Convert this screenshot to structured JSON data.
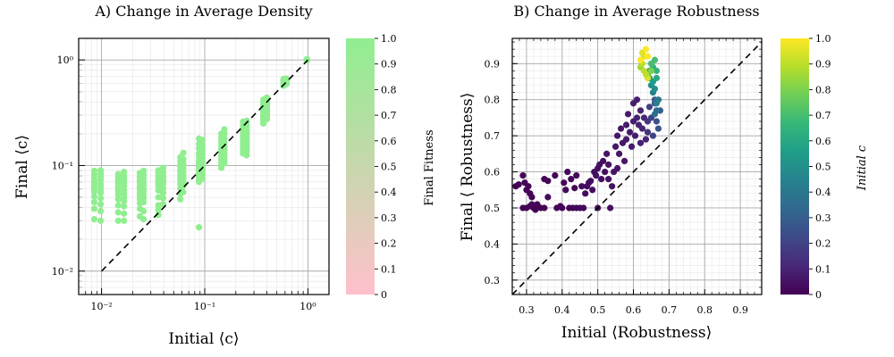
{
  "chart_data": [
    {
      "type": "scatter",
      "title": "A) Change in Average Density",
      "xlabel": "Initial ⟨c⟩",
      "ylabel": "Final ⟨c⟩",
      "xscale": "log",
      "yscale": "log",
      "xlim": [
        0.006,
        1.6
      ],
      "ylim": [
        0.006,
        1.6
      ],
      "grid": true,
      "xticks": [
        {
          "value": 0.01,
          "label": "10⁻²"
        },
        {
          "value": 0.1,
          "label": "10⁻¹"
        },
        {
          "value": 1,
          "label": "10⁰"
        }
      ],
      "yticks": [
        {
          "value": 0.01,
          "label": "10⁻²"
        },
        {
          "value": 0.1,
          "label": "10⁻¹"
        },
        {
          "value": 1,
          "label": "10⁰"
        }
      ],
      "reference_line": {
        "style": "dashed",
        "from": [
          0.01,
          0.01
        ],
        "to": [
          1,
          1
        ],
        "color": "#000000"
      },
      "marker_color": "#90ee90",
      "series": [
        {
          "x": 0.0085,
          "y": [
            0.089,
            0.082,
            0.076,
            0.071,
            0.068,
            0.065,
            0.061,
            0.057,
            0.051,
            0.045,
            0.039,
            0.031
          ]
        },
        {
          "x": 0.0098,
          "y": [
            0.09,
            0.084,
            0.078,
            0.073,
            0.067,
            0.063,
            0.059,
            0.055,
            0.049,
            0.043,
            0.037,
            0.03
          ]
        },
        {
          "x": 0.0145,
          "y": [
            0.083,
            0.077,
            0.072,
            0.068,
            0.063,
            0.06,
            0.057,
            0.053,
            0.048,
            0.042,
            0.036,
            0.03
          ]
        },
        {
          "x": 0.0165,
          "y": [
            0.087,
            0.08,
            0.074,
            0.069,
            0.064,
            0.058,
            0.054,
            0.05,
            0.046,
            0.041,
            0.035,
            0.03
          ]
        },
        {
          "x": 0.0235,
          "y": [
            0.085,
            0.079,
            0.073,
            0.069,
            0.064,
            0.061,
            0.056,
            0.052,
            0.048,
            0.044,
            0.039,
            0.033
          ]
        },
        {
          "x": 0.0255,
          "y": [
            0.089,
            0.082,
            0.076,
            0.07,
            0.065,
            0.06,
            0.057,
            0.053,
            0.049,
            0.045,
            0.037,
            0.031
          ]
        },
        {
          "x": 0.0355,
          "y": [
            0.09,
            0.085,
            0.079,
            0.073,
            0.069,
            0.064,
            0.058,
            0.05,
            0.042,
            0.038,
            0.034
          ]
        },
        {
          "x": 0.0395,
          "y": [
            0.095,
            0.086,
            0.08,
            0.076,
            0.071,
            0.067,
            0.061,
            0.055,
            0.049,
            0.043
          ]
        },
        {
          "x": 0.058,
          "y": [
            0.12,
            0.11,
            0.1,
            0.095,
            0.089,
            0.083,
            0.078,
            0.073,
            0.067,
            0.061,
            0.054,
            0.048
          ]
        },
        {
          "x": 0.062,
          "y": [
            0.132,
            0.115,
            0.105,
            0.094,
            0.087,
            0.08,
            0.075,
            0.069,
            0.064,
            0.056
          ]
        },
        {
          "x": 0.088,
          "y": [
            0.18,
            0.16,
            0.145,
            0.13,
            0.12,
            0.11,
            0.104,
            0.097,
            0.091,
            0.085,
            0.079,
            0.074,
            0.07,
            0.026
          ]
        },
        {
          "x": 0.095,
          "y": [
            0.175,
            0.155,
            0.14,
            0.128,
            0.118,
            0.108,
            0.1,
            0.093,
            0.087,
            0.081,
            0.075
          ]
        },
        {
          "x": 0.145,
          "y": [
            0.2,
            0.185,
            0.172,
            0.16,
            0.15,
            0.142,
            0.134,
            0.126,
            0.119,
            0.112,
            0.106,
            0.1,
            0.095
          ]
        },
        {
          "x": 0.155,
          "y": [
            0.22,
            0.2,
            0.18,
            0.165,
            0.152,
            0.14,
            0.13,
            0.12,
            0.112,
            0.105
          ]
        },
        {
          "x": 0.235,
          "y": [
            0.26,
            0.24,
            0.225,
            0.21,
            0.198,
            0.185,
            0.172,
            0.16,
            0.15,
            0.14,
            0.13
          ]
        },
        {
          "x": 0.255,
          "y": [
            0.265,
            0.245,
            0.228,
            0.212,
            0.2,
            0.188,
            0.176,
            0.166,
            0.155,
            0.145,
            0.135,
            0.125
          ]
        },
        {
          "x": 0.37,
          "y": [
            0.42,
            0.4,
            0.38,
            0.36,
            0.345,
            0.33,
            0.315,
            0.3,
            0.29,
            0.28,
            0.27,
            0.26,
            0.25
          ]
        },
        {
          "x": 0.4,
          "y": [
            0.44,
            0.41,
            0.39,
            0.37,
            0.35,
            0.335,
            0.32,
            0.305,
            0.29,
            0.275
          ]
        },
        {
          "x": 0.58,
          "y": [
            0.66,
            0.64,
            0.62,
            0.6,
            0.585,
            0.57
          ]
        },
        {
          "x": 0.62,
          "y": [
            0.665,
            0.645,
            0.625,
            0.605,
            0.59
          ]
        },
        {
          "x": 0.98,
          "y": [
            1.0,
            1.02,
            0.99
          ]
        }
      ],
      "colorbar": {
        "label": "Final Fitness",
        "range": [
          0,
          1
        ],
        "colors": [
          "#ffc0cb",
          "#90ee90"
        ],
        "ticks": [
          "0",
          "0.1",
          "0.2",
          "0.3",
          "0.4",
          "0.5",
          "0.6",
          "0.7",
          "0.8",
          "0.9",
          "1.0"
        ]
      }
    },
    {
      "type": "scatter",
      "title": "B) Change in Average Robustness",
      "xlabel": "Initial ⟨Robustness⟩",
      "ylabel": "Final ⟨ Robustness⟩",
      "xlim": [
        0.26,
        0.96
      ],
      "ylim": [
        0.26,
        0.97
      ],
      "grid": true,
      "xticks": [
        "0.3",
        "0.4",
        "0.5",
        "0.6",
        "0.7",
        "0.8",
        "0.9"
      ],
      "yticks": [
        "0.3",
        "0.4",
        "0.5",
        "0.6",
        "0.7",
        "0.8",
        "0.9"
      ],
      "reference_line": {
        "style": "dashed",
        "from": [
          0.26,
          0.26
        ],
        "to": [
          0.96,
          0.96
        ],
        "color": "#000000"
      },
      "points": [
        {
          "x": 0.27,
          "y": 0.56,
          "c": 0.0
        },
        {
          "x": 0.278,
          "y": 0.565,
          "c": 0.0
        },
        {
          "x": 0.29,
          "y": 0.59,
          "c": 0.01
        },
        {
          "x": 0.295,
          "y": 0.57,
          "c": 0.01
        },
        {
          "x": 0.3,
          "y": 0.55,
          "c": 0.01
        },
        {
          "x": 0.305,
          "y": 0.56,
          "c": 0.01
        },
        {
          "x": 0.31,
          "y": 0.54,
          "c": 0.01
        },
        {
          "x": 0.315,
          "y": 0.53,
          "c": 0.01
        },
        {
          "x": 0.29,
          "y": 0.5,
          "c": 0.0
        },
        {
          "x": 0.3,
          "y": 0.5,
          "c": 0.0
        },
        {
          "x": 0.31,
          "y": 0.505,
          "c": 0.0
        },
        {
          "x": 0.32,
          "y": 0.5,
          "c": 0.0
        },
        {
          "x": 0.325,
          "y": 0.495,
          "c": 0.0
        },
        {
          "x": 0.33,
          "y": 0.505,
          "c": 0.0
        },
        {
          "x": 0.34,
          "y": 0.5,
          "c": 0.0
        },
        {
          "x": 0.35,
          "y": 0.5,
          "c": 0.0
        },
        {
          "x": 0.315,
          "y": 0.51,
          "c": 0.01
        },
        {
          "x": 0.33,
          "y": 0.51,
          "c": 0.01
        },
        {
          "x": 0.35,
          "y": 0.58,
          "c": 0.01
        },
        {
          "x": 0.36,
          "y": 0.575,
          "c": 0.01
        },
        {
          "x": 0.36,
          "y": 0.53,
          "c": 0.02
        },
        {
          "x": 0.38,
          "y": 0.59,
          "c": 0.01
        },
        {
          "x": 0.385,
          "y": 0.5,
          "c": 0.01
        },
        {
          "x": 0.395,
          "y": 0.505,
          "c": 0.01
        },
        {
          "x": 0.4,
          "y": 0.5,
          "c": 0.01
        },
        {
          "x": 0.405,
          "y": 0.57,
          "c": 0.02
        },
        {
          "x": 0.41,
          "y": 0.55,
          "c": 0.02
        },
        {
          "x": 0.415,
          "y": 0.6,
          "c": 0.02
        },
        {
          "x": 0.42,
          "y": 0.5,
          "c": 0.01
        },
        {
          "x": 0.425,
          "y": 0.58,
          "c": 0.02
        },
        {
          "x": 0.43,
          "y": 0.5,
          "c": 0.01
        },
        {
          "x": 0.435,
          "y": 0.555,
          "c": 0.02
        },
        {
          "x": 0.44,
          "y": 0.59,
          "c": 0.02
        },
        {
          "x": 0.44,
          "y": 0.5,
          "c": 0.02
        },
        {
          "x": 0.45,
          "y": 0.5,
          "c": 0.02
        },
        {
          "x": 0.455,
          "y": 0.56,
          "c": 0.03
        },
        {
          "x": 0.46,
          "y": 0.5,
          "c": 0.02
        },
        {
          "x": 0.465,
          "y": 0.54,
          "c": 0.03
        },
        {
          "x": 0.47,
          "y": 0.56,
          "c": 0.03
        },
        {
          "x": 0.475,
          "y": 0.57,
          "c": 0.03
        },
        {
          "x": 0.48,
          "y": 0.575,
          "c": 0.03
        },
        {
          "x": 0.485,
          "y": 0.55,
          "c": 0.03
        },
        {
          "x": 0.49,
          "y": 0.6,
          "c": 0.04
        },
        {
          "x": 0.495,
          "y": 0.59,
          "c": 0.04
        },
        {
          "x": 0.5,
          "y": 0.61,
          "c": 0.04
        },
        {
          "x": 0.5,
          "y": 0.5,
          "c": 0.03
        },
        {
          "x": 0.505,
          "y": 0.62,
          "c": 0.04
        },
        {
          "x": 0.51,
          "y": 0.58,
          "c": 0.04
        },
        {
          "x": 0.515,
          "y": 0.63,
          "c": 0.04
        },
        {
          "x": 0.52,
          "y": 0.6,
          "c": 0.04
        },
        {
          "x": 0.525,
          "y": 0.65,
          "c": 0.05
        },
        {
          "x": 0.53,
          "y": 0.62,
          "c": 0.05
        },
        {
          "x": 0.53,
          "y": 0.58,
          "c": 0.05
        },
        {
          "x": 0.535,
          "y": 0.5,
          "c": 0.04
        },
        {
          "x": 0.54,
          "y": 0.56,
          "c": 0.05
        },
        {
          "x": 0.545,
          "y": 0.6,
          "c": 0.05
        },
        {
          "x": 0.55,
          "y": 0.67,
          "c": 0.06
        },
        {
          "x": 0.555,
          "y": 0.7,
          "c": 0.06
        },
        {
          "x": 0.555,
          "y": 0.61,
          "c": 0.06
        },
        {
          "x": 0.56,
          "y": 0.65,
          "c": 0.06
        },
        {
          "x": 0.565,
          "y": 0.72,
          "c": 0.06
        },
        {
          "x": 0.57,
          "y": 0.68,
          "c": 0.06
        },
        {
          "x": 0.575,
          "y": 0.63,
          "c": 0.06
        },
        {
          "x": 0.58,
          "y": 0.73,
          "c": 0.07
        },
        {
          "x": 0.58,
          "y": 0.69,
          "c": 0.07
        },
        {
          "x": 0.585,
          "y": 0.76,
          "c": 0.07
        },
        {
          "x": 0.59,
          "y": 0.71,
          "c": 0.07
        },
        {
          "x": 0.595,
          "y": 0.67,
          "c": 0.07
        },
        {
          "x": 0.6,
          "y": 0.74,
          "c": 0.08
        },
        {
          "x": 0.6,
          "y": 0.79,
          "c": 0.08
        },
        {
          "x": 0.605,
          "y": 0.7,
          "c": 0.08
        },
        {
          "x": 0.61,
          "y": 0.75,
          "c": 0.09
        },
        {
          "x": 0.61,
          "y": 0.8,
          "c": 0.09
        },
        {
          "x": 0.615,
          "y": 0.73,
          "c": 0.09
        },
        {
          "x": 0.62,
          "y": 0.68,
          "c": 0.09
        },
        {
          "x": 0.62,
          "y": 0.77,
          "c": 0.1
        },
        {
          "x": 0.625,
          "y": 0.72,
          "c": 0.1
        },
        {
          "x": 0.63,
          "y": 0.75,
          "c": 0.1
        },
        {
          "x": 0.635,
          "y": 0.69,
          "c": 0.1
        },
        {
          "x": 0.64,
          "y": 0.74,
          "c": 0.15
        },
        {
          "x": 0.64,
          "y": 0.71,
          "c": 0.15
        },
        {
          "x": 0.645,
          "y": 0.78,
          "c": 0.2
        },
        {
          "x": 0.65,
          "y": 0.75,
          "c": 0.2
        },
        {
          "x": 0.655,
          "y": 0.7,
          "c": 0.2
        },
        {
          "x": 0.66,
          "y": 0.79,
          "c": 0.25
        },
        {
          "x": 0.665,
          "y": 0.74,
          "c": 0.25
        },
        {
          "x": 0.67,
          "y": 0.72,
          "c": 0.25
        },
        {
          "x": 0.675,
          "y": 0.77,
          "c": 0.3
        },
        {
          "x": 0.66,
          "y": 0.8,
          "c": 0.3
        },
        {
          "x": 0.665,
          "y": 0.77,
          "c": 0.35
        },
        {
          "x": 0.66,
          "y": 0.76,
          "c": 0.35
        },
        {
          "x": 0.67,
          "y": 0.8,
          "c": 0.4
        },
        {
          "x": 0.655,
          "y": 0.82,
          "c": 0.45
        },
        {
          "x": 0.665,
          "y": 0.79,
          "c": 0.45
        },
        {
          "x": 0.65,
          "y": 0.84,
          "c": 0.5
        },
        {
          "x": 0.66,
          "y": 0.83,
          "c": 0.5
        },
        {
          "x": 0.645,
          "y": 0.86,
          "c": 0.55
        },
        {
          "x": 0.655,
          "y": 0.85,
          "c": 0.55
        },
        {
          "x": 0.665,
          "y": 0.86,
          "c": 0.6
        },
        {
          "x": 0.645,
          "y": 0.88,
          "c": 0.6
        },
        {
          "x": 0.655,
          "y": 0.89,
          "c": 0.65
        },
        {
          "x": 0.665,
          "y": 0.88,
          "c": 0.65
        },
        {
          "x": 0.65,
          "y": 0.9,
          "c": 0.7
        },
        {
          "x": 0.66,
          "y": 0.91,
          "c": 0.7
        },
        {
          "x": 0.64,
          "y": 0.87,
          "c": 0.75
        },
        {
          "x": 0.65,
          "y": 0.88,
          "c": 0.8
        },
        {
          "x": 0.62,
          "y": 0.89,
          "c": 0.85
        },
        {
          "x": 0.625,
          "y": 0.9,
          "c": 0.9
        },
        {
          "x": 0.63,
          "y": 0.88,
          "c": 0.9
        },
        {
          "x": 0.63,
          "y": 0.92,
          "c": 0.95
        },
        {
          "x": 0.625,
          "y": 0.93,
          "c": 0.95
        },
        {
          "x": 0.635,
          "y": 0.94,
          "c": 1.0
        },
        {
          "x": 0.64,
          "y": 0.92,
          "c": 1.0
        },
        {
          "x": 0.62,
          "y": 0.91,
          "c": 1.0
        },
        {
          "x": 0.64,
          "y": 0.86,
          "c": 0.95
        },
        {
          "x": 0.635,
          "y": 0.87,
          "c": 0.9
        }
      ],
      "colorbar": {
        "label": "Initial c",
        "range": [
          0,
          1
        ],
        "colormap": "viridis",
        "colors": [
          "#440154",
          "#482878",
          "#3e4989",
          "#31688e",
          "#26828e",
          "#1f9e89",
          "#35b779",
          "#6ece58",
          "#b5de2b",
          "#fde725"
        ],
        "ticks": [
          "0",
          "0.1",
          "0.2",
          "0.3",
          "0.4",
          "0.5",
          "0.6",
          "0.7",
          "0.8",
          "0.9",
          "1.0"
        ]
      }
    }
  ]
}
